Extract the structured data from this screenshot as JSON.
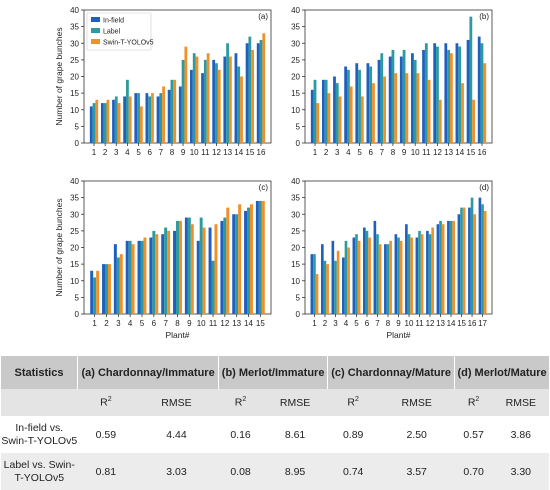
{
  "chart_data": [
    {
      "type": "bar",
      "panel": "(a)",
      "categories": [
        "1",
        "2",
        "3",
        "4",
        "5",
        "6",
        "7",
        "8",
        "9",
        "10",
        "11",
        "12",
        "13",
        "14",
        "15",
        "16"
      ],
      "series": [
        {
          "name": "In-field",
          "values": [
            11,
            12,
            13,
            14,
            15,
            15,
            14,
            16,
            17,
            22,
            21,
            25,
            26,
            27,
            30,
            30
          ]
        },
        {
          "name": "Label",
          "values": [
            12,
            12,
            14,
            19,
            15,
            14,
            15,
            19,
            25,
            27,
            25,
            24,
            30,
            23,
            32,
            31
          ]
        },
        {
          "name": "Swin-T-YOLOv5",
          "values": [
            13,
            13,
            12,
            14,
            11,
            15,
            17,
            19,
            29,
            26,
            27,
            22,
            26,
            20,
            28,
            33
          ]
        }
      ],
      "xlabel": "",
      "ylabel": "Number of grape bunches",
      "ylim": [
        0,
        40
      ],
      "yticks": [
        0,
        5,
        10,
        15,
        20,
        25,
        30,
        35,
        40
      ],
      "legend": "top-left"
    },
    {
      "type": "bar",
      "panel": "(b)",
      "categories": [
        "1",
        "2",
        "3",
        "4",
        "5",
        "6",
        "7",
        "8",
        "9",
        "10",
        "11",
        "12",
        "13",
        "14",
        "15",
        "16"
      ],
      "series": [
        {
          "name": "In-field",
          "values": [
            16,
            19,
            20,
            23,
            24,
            24,
            25,
            26,
            26,
            27,
            28,
            30,
            30,
            30,
            31,
            32
          ]
        },
        {
          "name": "Label",
          "values": [
            19,
            19,
            18,
            22,
            22,
            23,
            27,
            28,
            28,
            25,
            30,
            29,
            28,
            29,
            38,
            30
          ]
        },
        {
          "name": "Swin-T-YOLOv5",
          "values": [
            12,
            15,
            14,
            17,
            14,
            18,
            20,
            21,
            21,
            21,
            19,
            13,
            27,
            18,
            13,
            24
          ]
        }
      ],
      "xlabel": "",
      "ylabel": "",
      "ylim": [
        0,
        40
      ],
      "yticks": [
        0,
        5,
        10,
        15,
        20,
        25,
        30,
        35,
        40
      ]
    },
    {
      "type": "bar",
      "panel": "(c)",
      "categories": [
        "1",
        "2",
        "3",
        "4",
        "5",
        "6",
        "7",
        "8",
        "9",
        "10",
        "11",
        "12",
        "13",
        "14",
        "15"
      ],
      "series": [
        {
          "name": "In-field",
          "values": [
            13,
            15,
            21,
            22,
            22,
            23,
            24,
            25,
            29,
            22,
            26,
            28,
            30,
            31,
            34
          ]
        },
        {
          "name": "Label",
          "values": [
            11,
            15,
            17,
            22,
            22,
            25,
            26,
            28,
            29,
            29,
            16,
            29,
            30,
            32,
            34
          ]
        },
        {
          "name": "Swin-T-YOLOv5",
          "values": [
            13,
            15,
            18,
            21,
            23,
            24,
            25,
            28,
            27,
            26,
            27,
            32,
            33,
            33,
            34
          ]
        }
      ],
      "xlabel": "Plant#",
      "ylabel": "Number of grape bunches",
      "ylim": [
        0,
        40
      ],
      "yticks": [
        0,
        5,
        10,
        15,
        20,
        25,
        30,
        35,
        40
      ]
    },
    {
      "type": "bar",
      "panel": "(d)",
      "categories": [
        "1",
        "2",
        "3",
        "4",
        "5",
        "6",
        "7",
        "8",
        "9",
        "10",
        "11",
        "12",
        "13",
        "14",
        "15",
        "16",
        "17"
      ],
      "series": [
        {
          "name": "In-field",
          "values": [
            18,
            21,
            22,
            17,
            23,
            26,
            28,
            21,
            24,
            27,
            23,
            25,
            27,
            28,
            30,
            32,
            35
          ]
        },
        {
          "name": "Label",
          "values": [
            18,
            16,
            16,
            22,
            24,
            25,
            24,
            21,
            23,
            24,
            25,
            24,
            28,
            28,
            32,
            35,
            33
          ]
        },
        {
          "name": "Swin-T-YOLOv5",
          "values": [
            12,
            15,
            19,
            20,
            22,
            23,
            21,
            22,
            22,
            23,
            24,
            26,
            27,
            28,
            32,
            30,
            31
          ]
        }
      ],
      "xlabel": "Plant#",
      "ylabel": "",
      "ylim": [
        0,
        40
      ],
      "yticks": [
        0,
        5,
        10,
        15,
        20,
        25,
        30,
        35,
        40
      ]
    }
  ],
  "colors": {
    "In-field": "#1f5fbf",
    "Label": "#2c9a9e",
    "Swin-T-YOLOv5": "#f0902a"
  },
  "table": {
    "corner": "Statistics",
    "groups": [
      "(a) Chardonnay/Immature",
      "(b) Merlot/Immature",
      "(c) Chardonnay/Mature",
      "(d) Merlot/Mature"
    ],
    "metric_r2": "R",
    "metric_r2_sup": "2",
    "metric_rmse": "RMSE",
    "rows": [
      {
        "label_line1": "In-field vs.",
        "label_line2": "Swin-T-YOLOv5",
        "values": [
          "0.59",
          "4.44",
          "0.16",
          "8.61",
          "0.89",
          "2.50",
          "0.57",
          "3.86"
        ]
      },
      {
        "label_line1": "Label vs. Swin-",
        "label_line2": "T-YOLOv5",
        "values": [
          "0.81",
          "3.03",
          "0.08",
          "8.95",
          "0.74",
          "3.57",
          "0.70",
          "3.30"
        ]
      }
    ]
  }
}
